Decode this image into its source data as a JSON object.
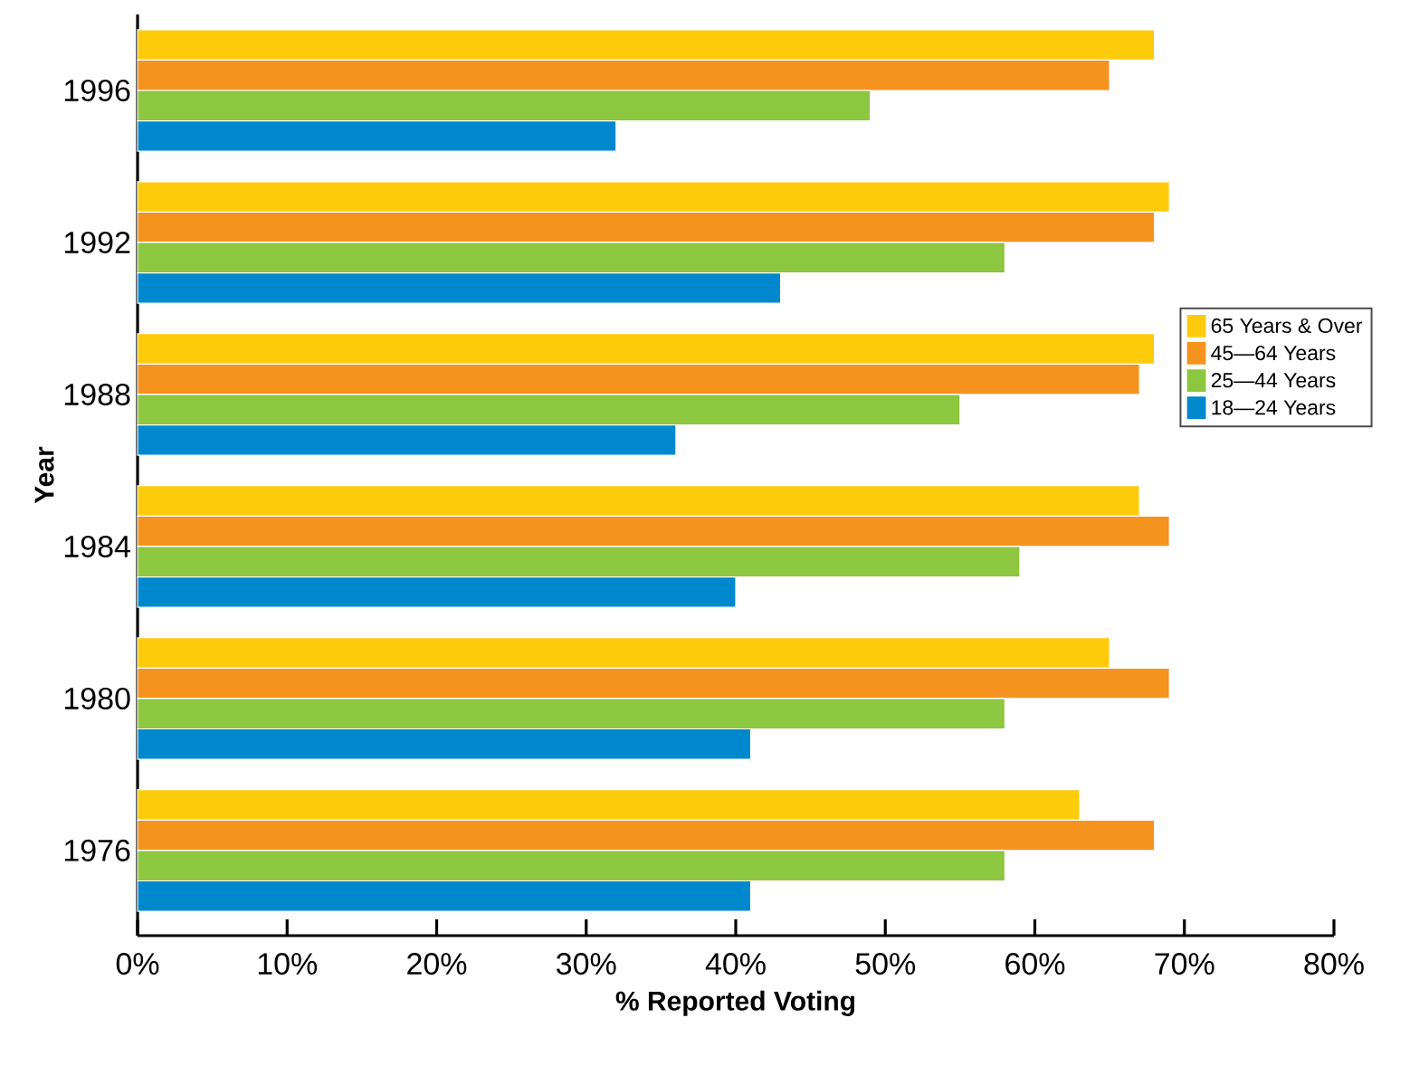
{
  "chart_data": {
    "type": "bar",
    "orientation": "horizontal",
    "xlabel": "% Reported Voting",
    "ylabel": "Year",
    "categories": [
      "1996",
      "1992",
      "1988",
      "1984",
      "1980",
      "1976"
    ],
    "series": [
      {
        "name": "65 Years & Over",
        "color": "#fecb0b",
        "values": [
          68,
          69,
          68,
          67,
          65,
          63
        ]
      },
      {
        "name": "45—64 Years",
        "color": "#f6921e",
        "values": [
          65,
          68,
          67,
          69,
          69,
          68
        ]
      },
      {
        "name": "25—44 Years",
        "color": "#8dc63f",
        "values": [
          49,
          58,
          55,
          59,
          58,
          58
        ]
      },
      {
        "name": "18—24 Years",
        "color": "#0088cf",
        "values": [
          32,
          43,
          36,
          40,
          41,
          41
        ]
      }
    ],
    "xlim": [
      0,
      80
    ],
    "xticks": [
      {
        "value": 0,
        "label": "0%"
      },
      {
        "value": 10,
        "label": "10%"
      },
      {
        "value": 20,
        "label": "20%"
      },
      {
        "value": 30,
        "label": "30%"
      },
      {
        "value": 40,
        "label": "40%"
      },
      {
        "value": 50,
        "label": "50%"
      },
      {
        "value": 60,
        "label": "60%"
      },
      {
        "value": 70,
        "label": "70%"
      },
      {
        "value": 80,
        "label": "80%"
      }
    ],
    "legend": "right"
  }
}
